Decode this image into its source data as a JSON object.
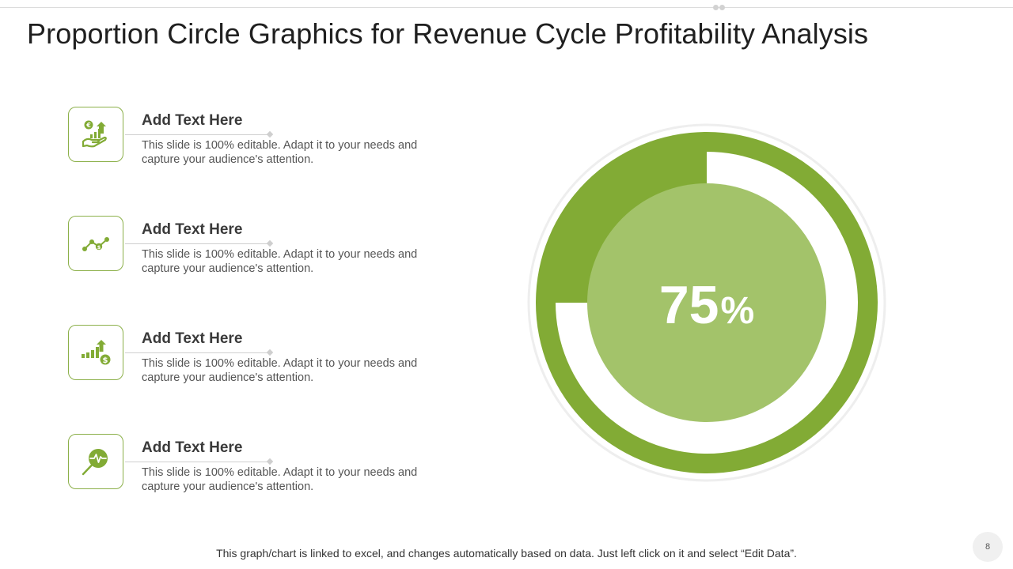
{
  "slide": {
    "title": "Proportion Circle Graphics for Revenue Cycle Profitability Analysis",
    "page_number": "8",
    "footer_note": "This graph/chart is linked to excel, and changes automatically based on data. Just left click on it and select “Edit Data”."
  },
  "items": [
    {
      "icon": "money-growth-hand-icon",
      "heading": "Add Text Here",
      "description": "This slide is 100% editable. Adapt it to your needs and capture your audience's attention."
    },
    {
      "icon": "line-trend-dollar-icon",
      "heading": "Add Text Here",
      "description": "This slide is 100% editable. Adapt it to your needs and capture your audience's attention."
    },
    {
      "icon": "bar-growth-dollar-icon",
      "heading": "Add Text Here",
      "description": "This slide is 100% editable. Adapt it to your needs and capture your audience's attention."
    },
    {
      "icon": "pulse-magnifier-icon",
      "heading": "Add Text Here",
      "description": "This slide is 100% editable. Adapt it to your needs and capture your audience's attention."
    }
  ],
  "gauge": {
    "value": 75,
    "value_text": "75",
    "unit": "%"
  },
  "colors": {
    "accent": "#82ab35",
    "accent_light": "#a3c36a",
    "ring_outline": "#eeeeee"
  }
}
